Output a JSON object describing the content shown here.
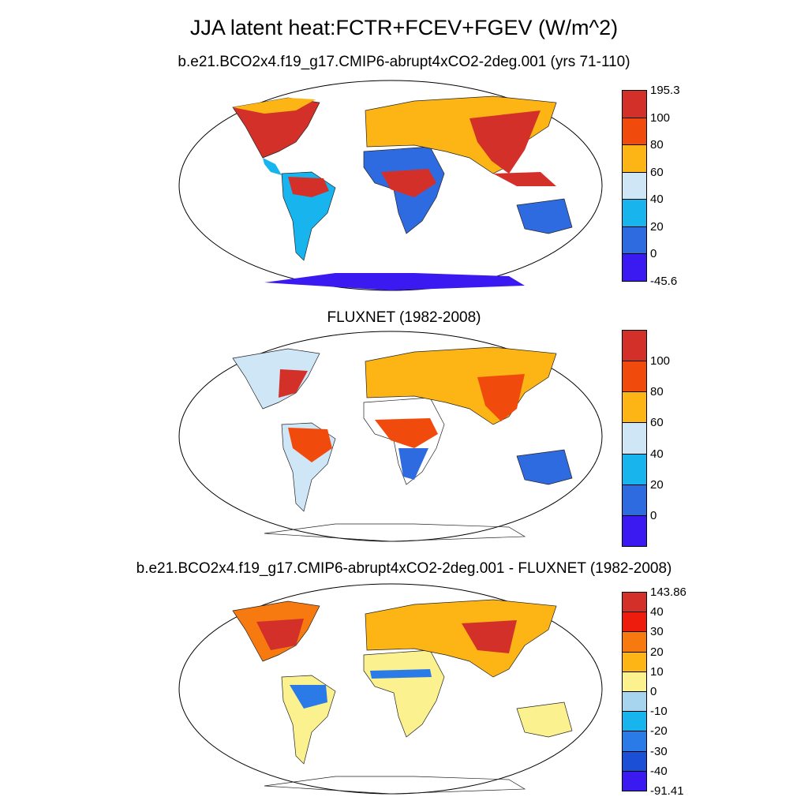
{
  "title": "JJA latent heat:FCTR+FCEV+FGEV (W/m^2)",
  "panels": [
    {
      "subtitle": "b.e21.BCO2x4.f19_g17.CMIP6-abrupt4xCO2-2deg.001 (yrs 71-110)",
      "colorbar": {
        "colors": [
          "#3a1af0",
          "#2f6be0",
          "#18b4ee",
          "#cfe6f7",
          "#fcb514",
          "#f04a0c",
          "#d4302a"
        ],
        "labels": [
          "-45.6",
          "0",
          "20",
          "40",
          "60",
          "80",
          "100",
          "195.3"
        ],
        "min_label": "-45.6",
        "max_label": "195.3"
      }
    },
    {
      "subtitle": "FLUXNET (1982-2008)",
      "colorbar": {
        "colors": [
          "#3a1af0",
          "#2f6be0",
          "#18b4ee",
          "#cfe6f7",
          "#fcb514",
          "#f04a0c",
          "#d4302a"
        ],
        "labels": [
          "0",
          "20",
          "40",
          "60",
          "80",
          "100"
        ]
      }
    },
    {
      "subtitle": "b.e21.BCO2x4.f19_g17.CMIP6-abrupt4xCO2-2deg.001 - FLUXNET (1982-2008)",
      "colorbar": {
        "colors": [
          "#3a1af0",
          "#1a4fd6",
          "#2a7be8",
          "#18b4ee",
          "#a7d4ef",
          "#fbf18e",
          "#fcb514",
          "#f77a10",
          "#ee1c0c",
          "#d4302a"
        ],
        "labels": [
          "-91.41",
          "-40",
          "-30",
          "-20",
          "-10",
          "0",
          "10",
          "20",
          "30",
          "40",
          "143.86"
        ]
      }
    }
  ]
}
